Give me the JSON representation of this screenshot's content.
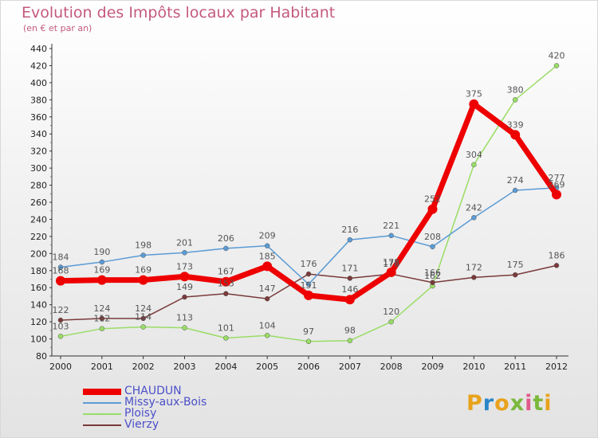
{
  "header": {
    "title": "Evolution des Impôts locaux par Habitant",
    "subtitle": "(en € et par an)"
  },
  "logo": {
    "letters": [
      "P",
      "r",
      "o",
      "x",
      "i",
      "t",
      "i"
    ],
    "colors": [
      "#e8a21c",
      "#2a86c8",
      "#e8a21c",
      "#7ab83c",
      "#e05a8a",
      "#7ab83c",
      "#e8a21c"
    ]
  },
  "chart_data": {
    "type": "line",
    "title": "Evolution des Impôts locaux par Habitant",
    "subtitle": "(en € et par an)",
    "xlabel": "",
    "ylabel": "",
    "x": [
      "2000",
      "2001",
      "2002",
      "2003",
      "2004",
      "2005",
      "2006",
      "2007",
      "2008",
      "2009",
      "2010",
      "2011",
      "2012"
    ],
    "ylim": [
      80,
      440
    ],
    "yticks": [
      80,
      100,
      120,
      140,
      160,
      180,
      200,
      220,
      240,
      260,
      280,
      300,
      320,
      340,
      360,
      380,
      400,
      420,
      440
    ],
    "grid": false,
    "legend_position": "bottom-left",
    "series": [
      {
        "name": "CHAUDUN",
        "color": "#ee0000",
        "values": [
          168,
          169,
          169,
          173,
          167,
          185,
          151,
          146,
          178,
          252,
          375,
          339,
          269
        ],
        "labels": [
          "168",
          "169",
          "169",
          "173",
          "167",
          "185",
          "151",
          "146",
          "178",
          "252",
          "375",
          "339",
          "269"
        ]
      },
      {
        "name": "Missy-aux-Bois",
        "color": "#5b9bd5",
        "values": [
          184,
          190,
          198,
          201,
          206,
          209,
          164,
          216,
          221,
          208,
          242,
          274,
          277
        ],
        "labels": [
          "184",
          "190",
          "198",
          "201",
          "206",
          "209",
          "",
          "216",
          "221",
          "208",
          "242",
          "274",
          "277"
        ]
      },
      {
        "name": "Ploisy",
        "color": "#99dd66",
        "values": [
          103,
          112,
          114,
          113,
          101,
          104,
          97,
          98,
          120,
          162,
          304,
          380,
          420
        ],
        "labels": [
          "103",
          "112",
          "114",
          "113",
          "101",
          "104",
          "97",
          "98",
          "120",
          "162",
          "304",
          "380",
          "420"
        ]
      },
      {
        "name": "Vierzy",
        "color": "#7a3a3a",
        "values": [
          122,
          124,
          124,
          149,
          153,
          147,
          176,
          171,
          176,
          166,
          172,
          175,
          186
        ],
        "labels": [
          "122",
          "124",
          "124",
          "149",
          "153",
          "147",
          "176",
          "171",
          "176",
          "166",
          "172",
          "175",
          "186"
        ]
      }
    ]
  }
}
